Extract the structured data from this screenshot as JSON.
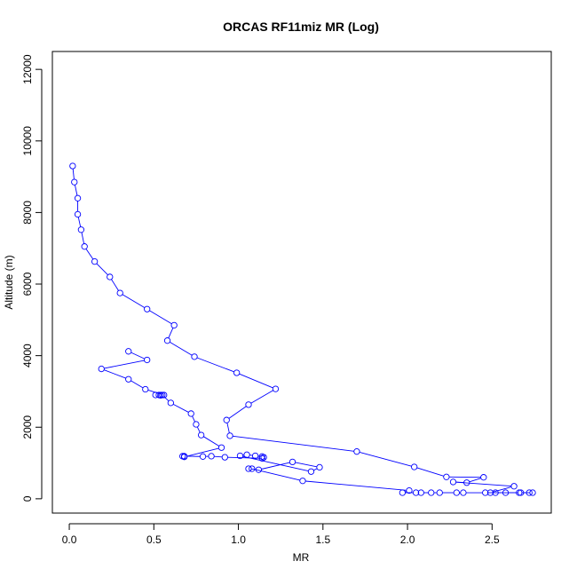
{
  "chart_data": {
    "type": "line",
    "title": "ORCAS RF11miz MR (Log)",
    "xlabel": "MR",
    "ylabel": "Altitude (m)",
    "xlim": [
      -0.1,
      2.85
    ],
    "ylim": [
      -400,
      12500
    ],
    "x_ticks": [
      0.0,
      0.5,
      1.0,
      1.5,
      2.0,
      2.5
    ],
    "x_tick_labels": [
      "0.0",
      "0.5",
      "1.0",
      "1.5",
      "2.0",
      "2.5"
    ],
    "y_ticks": [
      0,
      2000,
      4000,
      6000,
      8000,
      10000,
      12000
    ],
    "y_tick_labels": [
      "0",
      "2000",
      "4000",
      "6000",
      "8000",
      "10000",
      "12000"
    ],
    "grid": false,
    "line_color": "#0000ff",
    "marker": "open-circle",
    "series": [
      {
        "points": [
          [
            0.02,
            9300
          ],
          [
            0.03,
            8850
          ],
          [
            0.05,
            8400
          ],
          [
            0.05,
            7950
          ],
          [
            0.07,
            7520
          ],
          [
            0.09,
            7050
          ],
          [
            0.15,
            6630
          ],
          [
            0.24,
            6200
          ],
          [
            0.3,
            5750
          ],
          [
            0.46,
            5300
          ],
          [
            0.62,
            4850
          ],
          [
            0.58,
            4420
          ],
          [
            0.74,
            3970
          ],
          [
            0.99,
            3520
          ],
          [
            1.22,
            3070
          ],
          [
            1.06,
            2630
          ],
          [
            0.93,
            2200
          ],
          [
            0.95,
            1760
          ],
          [
            1.7,
            1320
          ],
          [
            2.04,
            890
          ],
          [
            2.23,
            610
          ],
          [
            2.45,
            600
          ],
          [
            2.35,
            450
          ],
          [
            2.27,
            470
          ],
          [
            2.63,
            350
          ],
          [
            2.49,
            170
          ],
          [
            2.58,
            170
          ],
          [
            2.67,
            170
          ],
          [
            2.72,
            170
          ],
          [
            2.74,
            170
          ],
          [
            2.66,
            170
          ],
          [
            2.52,
            170
          ],
          [
            2.46,
            170
          ],
          [
            2.33,
            170
          ],
          [
            2.29,
            170
          ],
          [
            2.19,
            170
          ],
          [
            2.14,
            170
          ],
          [
            2.08,
            170
          ],
          [
            2.05,
            170
          ],
          [
            1.97,
            170
          ],
          [
            2.01,
            230
          ],
          [
            1.38,
            500
          ],
          [
            1.08,
            840
          ],
          [
            1.06,
            840
          ],
          [
            1.12,
            810
          ],
          [
            1.32,
            1030
          ],
          [
            1.48,
            880
          ],
          [
            1.43,
            760
          ],
          [
            1.01,
            1200
          ],
          [
            1.05,
            1230
          ],
          [
            1.1,
            1200
          ],
          [
            1.14,
            1180
          ],
          [
            1.15,
            1160
          ],
          [
            1.14,
            1130
          ],
          [
            0.92,
            1160
          ],
          [
            0.84,
            1190
          ],
          [
            0.79,
            1180
          ],
          [
            0.68,
            1190
          ],
          [
            0.67,
            1190
          ],
          [
            0.68,
            1170
          ],
          [
            0.9,
            1430
          ],
          [
            0.78,
            1780
          ],
          [
            0.75,
            2080
          ],
          [
            0.72,
            2380
          ],
          [
            0.6,
            2680
          ],
          [
            0.55,
            2900
          ],
          [
            0.54,
            2900
          ],
          [
            0.53,
            2900
          ],
          [
            0.51,
            2900
          ],
          [
            0.54,
            2890
          ],
          [
            0.56,
            2900
          ],
          [
            0.45,
            3060
          ],
          [
            0.35,
            3340
          ],
          [
            0.19,
            3630
          ],
          [
            0.46,
            3880
          ],
          [
            0.35,
            4120
          ]
        ]
      }
    ]
  }
}
